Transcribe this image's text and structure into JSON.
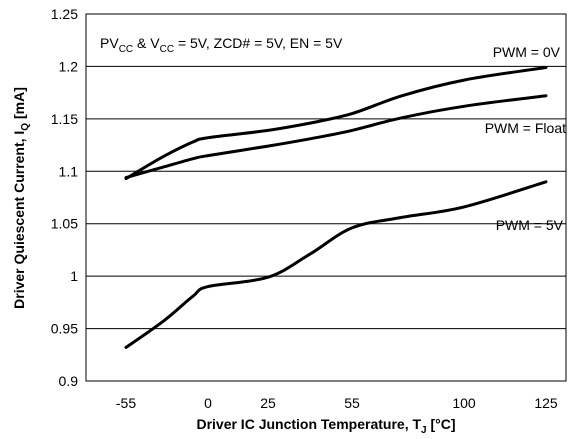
{
  "chart_data": {
    "type": "line",
    "xlabel": {
      "main": "Driver IC Junction Temperature, T",
      "sub": "J",
      "tail": " [°C]"
    },
    "ylabel": {
      "main": "Driver Quiescent Current, I",
      "sub": "Q",
      "tail": " [mA]"
    },
    "ylim": [
      0.9,
      1.25
    ],
    "y_ticks": [
      0.9,
      0.95,
      1,
      1.05,
      1.1,
      1.15,
      1.2,
      1.25
    ],
    "y_tick_labels": [
      "0.9",
      "0.95",
      "1",
      "1.05",
      "1.1",
      "1.15",
      "1.2",
      "1.25"
    ],
    "x_ticks": [
      -55,
      0,
      25,
      55,
      100,
      125
    ],
    "x_tick_labels": [
      "-55",
      "0",
      "25",
      "55",
      "100",
      "125"
    ],
    "grid": {
      "horizontal": true,
      "vertical": false
    },
    "condition_label": {
      "parts": [
        {
          "t": "PV"
        },
        {
          "t": "CC",
          "sub": true
        },
        {
          "t": " & V"
        },
        {
          "t": "CC",
          "sub": true
        },
        {
          "t": " = 5V, ZCD# = 5V, EN = 5V"
        }
      ]
    },
    "series": [
      {
        "name": "PWM = 0V",
        "x": [
          -55,
          -30,
          -10,
          0,
          25,
          40,
          55,
          75,
          100,
          125
        ],
        "y": [
          1.093,
          1.114,
          1.128,
          1.132,
          1.139,
          1.146,
          1.155,
          1.172,
          1.187,
          1.199
        ]
      },
      {
        "name": "PWM = Float",
        "x": [
          -55,
          -30,
          -10,
          0,
          25,
          40,
          55,
          75,
          100,
          125
        ],
        "y": [
          1.094,
          1.104,
          1.112,
          1.115,
          1.124,
          1.131,
          1.139,
          1.151,
          1.162,
          1.172
        ]
      },
      {
        "name": "PWM = 5V",
        "x": [
          -55,
          -30,
          -10,
          0,
          25,
          40,
          55,
          75,
          100,
          125
        ],
        "y": [
          0.932,
          0.957,
          0.981,
          0.99,
          0.999,
          1.021,
          1.046,
          1.056,
          1.066,
          1.09
        ]
      }
    ]
  }
}
